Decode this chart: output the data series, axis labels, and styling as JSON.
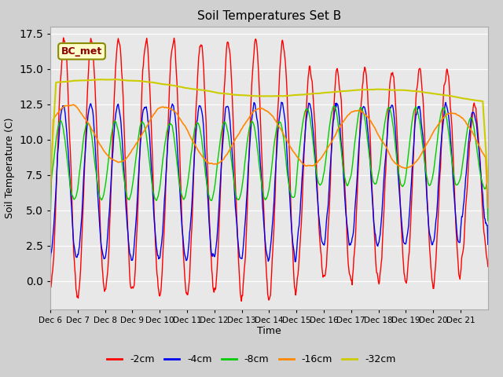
{
  "title": "Soil Temperatures Set B",
  "xlabel": "Time",
  "ylabel": "Soil Temperature (C)",
  "ylim": [
    -2,
    18
  ],
  "fig_bg": "#d0d0d0",
  "plot_bg": "#e8e8e8",
  "series_colors": {
    "-2cm": "#ff0000",
    "-4cm": "#0000ee",
    "-8cm": "#00cc00",
    "-16cm": "#ff8800",
    "-32cm": "#cccc00"
  },
  "x_tick_labels": [
    "Dec 6",
    "Dec 7",
    "Dec 8",
    "Dec 9",
    "Dec 10",
    "Dec 11",
    "Dec 12",
    "Dec 13",
    "Dec 14",
    "Dec 15",
    "Dec 16",
    "Dec 17",
    "Dec 18",
    "Dec 19",
    "Dec 20",
    "Dec 21"
  ],
  "n_days": 16,
  "points_per_day": 48
}
